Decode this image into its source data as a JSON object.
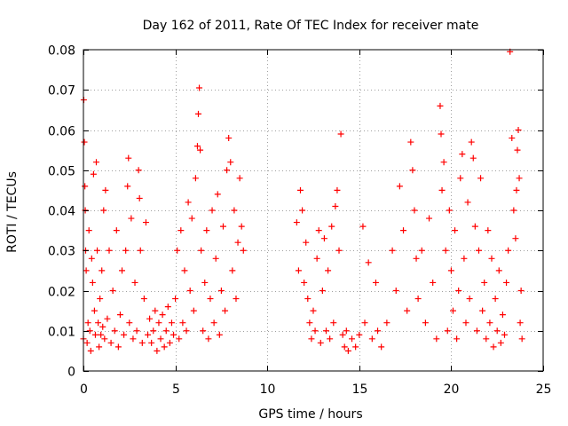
{
  "chart_data": {
    "type": "scatter",
    "title": "Day 162 of 2011, Rate Of TEC Index for receiver mate",
    "xlabel": "GPS time / hours",
    "ylabel": "ROTI / TECUs",
    "xlim": [
      0,
      25
    ],
    "ylim": [
      0,
      0.08
    ],
    "grid": true,
    "marker": "+",
    "marker_color": "#ff0000",
    "x_ticks": [
      {
        "value": 0,
        "label": "0"
      },
      {
        "value": 5,
        "label": "5"
      },
      {
        "value": 10,
        "label": "10"
      },
      {
        "value": 15,
        "label": "15"
      },
      {
        "value": 20,
        "label": "20"
      },
      {
        "value": 25,
        "label": "25"
      }
    ],
    "y_ticks": [
      {
        "value": 0,
        "label": "0"
      },
      {
        "value": 0.01,
        "label": "0.01"
      },
      {
        "value": 0.02,
        "label": "0.02"
      },
      {
        "value": 0.03,
        "label": "0.03"
      },
      {
        "value": 0.04,
        "label": "0.04"
      },
      {
        "value": 0.05,
        "label": "0.05"
      },
      {
        "value": 0.06,
        "label": "0.06"
      },
      {
        "value": 0.07,
        "label": "0.07"
      },
      {
        "value": 0.08,
        "label": "0.08"
      }
    ],
    "series": [
      {
        "name": "ROTI",
        "points": [
          [
            0.0,
            0.008
          ],
          [
            0.02,
            0.0675
          ],
          [
            0.05,
            0.057
          ],
          [
            0.08,
            0.046
          ],
          [
            0.1,
            0.04
          ],
          [
            0.12,
            0.03
          ],
          [
            0.15,
            0.025
          ],
          [
            0.2,
            0.007
          ],
          [
            0.25,
            0.012
          ],
          [
            0.3,
            0.035
          ],
          [
            0.35,
            0.01
          ],
          [
            0.4,
            0.005
          ],
          [
            0.45,
            0.028
          ],
          [
            0.5,
            0.022
          ],
          [
            0.55,
            0.049
          ],
          [
            0.6,
            0.015
          ],
          [
            0.65,
            0.009
          ],
          [
            0.7,
            0.052
          ],
          [
            0.75,
            0.03
          ],
          [
            0.8,
            0.012
          ],
          [
            0.85,
            0.006
          ],
          [
            0.9,
            0.018
          ],
          [
            0.95,
            0.009
          ],
          [
            1.0,
            0.025
          ],
          [
            1.05,
            0.011
          ],
          [
            1.1,
            0.04
          ],
          [
            1.15,
            0.008
          ],
          [
            1.2,
            0.045
          ],
          [
            1.3,
            0.013
          ],
          [
            1.4,
            0.03
          ],
          [
            1.5,
            0.007
          ],
          [
            1.6,
            0.02
          ],
          [
            1.7,
            0.01
          ],
          [
            1.8,
            0.035
          ],
          [
            1.9,
            0.006
          ],
          [
            2.0,
            0.014
          ],
          [
            2.1,
            0.025
          ],
          [
            2.2,
            0.009
          ],
          [
            2.3,
            0.03
          ],
          [
            2.4,
            0.046
          ],
          [
            2.45,
            0.053
          ],
          [
            2.5,
            0.012
          ],
          [
            2.6,
            0.038
          ],
          [
            2.7,
            0.008
          ],
          [
            2.8,
            0.022
          ],
          [
            2.9,
            0.01
          ],
          [
            3.0,
            0.05
          ],
          [
            3.05,
            0.043
          ],
          [
            3.1,
            0.03
          ],
          [
            3.2,
            0.007
          ],
          [
            3.3,
            0.018
          ],
          [
            3.4,
            0.037
          ],
          [
            3.5,
            0.009
          ],
          [
            3.6,
            0.013
          ],
          [
            3.7,
            0.007
          ],
          [
            3.8,
            0.01
          ],
          [
            3.9,
            0.015
          ],
          [
            4.0,
            0.005
          ],
          [
            4.1,
            0.012
          ],
          [
            4.2,
            0.008
          ],
          [
            4.3,
            0.014
          ],
          [
            4.4,
            0.006
          ],
          [
            4.5,
            0.01
          ],
          [
            4.6,
            0.016
          ],
          [
            4.7,
            0.007
          ],
          [
            4.8,
            0.012
          ],
          [
            4.9,
            0.009
          ],
          [
            5.0,
            0.018
          ],
          [
            5.1,
            0.03
          ],
          [
            5.2,
            0.008
          ],
          [
            5.3,
            0.035
          ],
          [
            5.4,
            0.012
          ],
          [
            5.5,
            0.025
          ],
          [
            5.6,
            0.01
          ],
          [
            5.7,
            0.042
          ],
          [
            5.8,
            0.02
          ],
          [
            5.9,
            0.038
          ],
          [
            6.0,
            0.015
          ],
          [
            6.1,
            0.048
          ],
          [
            6.2,
            0.056
          ],
          [
            6.25,
            0.064
          ],
          [
            6.3,
            0.0705
          ],
          [
            6.35,
            0.055
          ],
          [
            6.4,
            0.03
          ],
          [
            6.5,
            0.01
          ],
          [
            6.6,
            0.022
          ],
          [
            6.7,
            0.035
          ],
          [
            6.8,
            0.008
          ],
          [
            6.9,
            0.018
          ],
          [
            7.0,
            0.04
          ],
          [
            7.1,
            0.012
          ],
          [
            7.2,
            0.028
          ],
          [
            7.3,
            0.044
          ],
          [
            7.4,
            0.009
          ],
          [
            7.5,
            0.02
          ],
          [
            7.6,
            0.036
          ],
          [
            7.7,
            0.015
          ],
          [
            7.8,
            0.05
          ],
          [
            7.9,
            0.058
          ],
          [
            8.0,
            0.052
          ],
          [
            8.1,
            0.025
          ],
          [
            8.2,
            0.04
          ],
          [
            8.3,
            0.018
          ],
          [
            8.4,
            0.032
          ],
          [
            8.5,
            0.048
          ],
          [
            8.6,
            0.036
          ],
          [
            8.7,
            0.03
          ],
          [
            11.6,
            0.037
          ],
          [
            11.7,
            0.025
          ],
          [
            11.8,
            0.045
          ],
          [
            11.9,
            0.04
          ],
          [
            12.0,
            0.022
          ],
          [
            12.1,
            0.032
          ],
          [
            12.2,
            0.018
          ],
          [
            12.3,
            0.012
          ],
          [
            12.4,
            0.008
          ],
          [
            12.5,
            0.015
          ],
          [
            12.6,
            0.01
          ],
          [
            12.7,
            0.028
          ],
          [
            12.8,
            0.035
          ],
          [
            12.9,
            0.007
          ],
          [
            13.0,
            0.02
          ],
          [
            13.1,
            0.033
          ],
          [
            13.2,
            0.01
          ],
          [
            13.3,
            0.025
          ],
          [
            13.4,
            0.008
          ],
          [
            13.5,
            0.036
          ],
          [
            13.6,
            0.012
          ],
          [
            13.7,
            0.041
          ],
          [
            13.8,
            0.045
          ],
          [
            13.9,
            0.03
          ],
          [
            14.0,
            0.059
          ],
          [
            14.1,
            0.009
          ],
          [
            14.2,
            0.006
          ],
          [
            14.3,
            0.01
          ],
          [
            14.4,
            0.005
          ],
          [
            14.6,
            0.008
          ],
          [
            14.8,
            0.006
          ],
          [
            15.0,
            0.009
          ],
          [
            15.2,
            0.036
          ],
          [
            15.3,
            0.012
          ],
          [
            15.5,
            0.027
          ],
          [
            15.7,
            0.008
          ],
          [
            15.9,
            0.022
          ],
          [
            16.0,
            0.01
          ],
          [
            16.2,
            0.006
          ],
          [
            16.5,
            0.012
          ],
          [
            16.8,
            0.03
          ],
          [
            17.0,
            0.02
          ],
          [
            17.2,
            0.046
          ],
          [
            17.4,
            0.035
          ],
          [
            17.6,
            0.015
          ],
          [
            17.8,
            0.057
          ],
          [
            17.9,
            0.05
          ],
          [
            18.0,
            0.04
          ],
          [
            18.1,
            0.028
          ],
          [
            18.2,
            0.018
          ],
          [
            18.4,
            0.03
          ],
          [
            18.6,
            0.012
          ],
          [
            18.8,
            0.038
          ],
          [
            19.0,
            0.022
          ],
          [
            19.2,
            0.008
          ],
          [
            19.4,
            0.066
          ],
          [
            19.45,
            0.059
          ],
          [
            19.5,
            0.045
          ],
          [
            19.6,
            0.052
          ],
          [
            19.7,
            0.03
          ],
          [
            19.8,
            0.01
          ],
          [
            19.9,
            0.04
          ],
          [
            20.0,
            0.025
          ],
          [
            20.1,
            0.015
          ],
          [
            20.2,
            0.035
          ],
          [
            20.3,
            0.008
          ],
          [
            20.4,
            0.02
          ],
          [
            20.5,
            0.048
          ],
          [
            20.6,
            0.054
          ],
          [
            20.7,
            0.028
          ],
          [
            20.8,
            0.012
          ],
          [
            20.9,
            0.042
          ],
          [
            21.0,
            0.018
          ],
          [
            21.1,
            0.057
          ],
          [
            21.2,
            0.053
          ],
          [
            21.3,
            0.036
          ],
          [
            21.4,
            0.01
          ],
          [
            21.5,
            0.03
          ],
          [
            21.6,
            0.048
          ],
          [
            21.7,
            0.015
          ],
          [
            21.8,
            0.022
          ],
          [
            21.9,
            0.008
          ],
          [
            22.0,
            0.035
          ],
          [
            22.1,
            0.012
          ],
          [
            22.2,
            0.028
          ],
          [
            22.3,
            0.006
          ],
          [
            22.4,
            0.018
          ],
          [
            22.5,
            0.01
          ],
          [
            22.6,
            0.025
          ],
          [
            22.7,
            0.007
          ],
          [
            22.8,
            0.014
          ],
          [
            22.9,
            0.009
          ],
          [
            23.0,
            0.022
          ],
          [
            23.1,
            0.03
          ],
          [
            23.2,
            0.0795
          ],
          [
            23.3,
            0.058
          ],
          [
            23.4,
            0.04
          ],
          [
            23.5,
            0.033
          ],
          [
            23.55,
            0.045
          ],
          [
            23.6,
            0.055
          ],
          [
            23.65,
            0.06
          ],
          [
            23.7,
            0.048
          ],
          [
            23.75,
            0.012
          ],
          [
            23.8,
            0.02
          ],
          [
            23.85,
            0.008
          ]
        ]
      }
    ]
  }
}
